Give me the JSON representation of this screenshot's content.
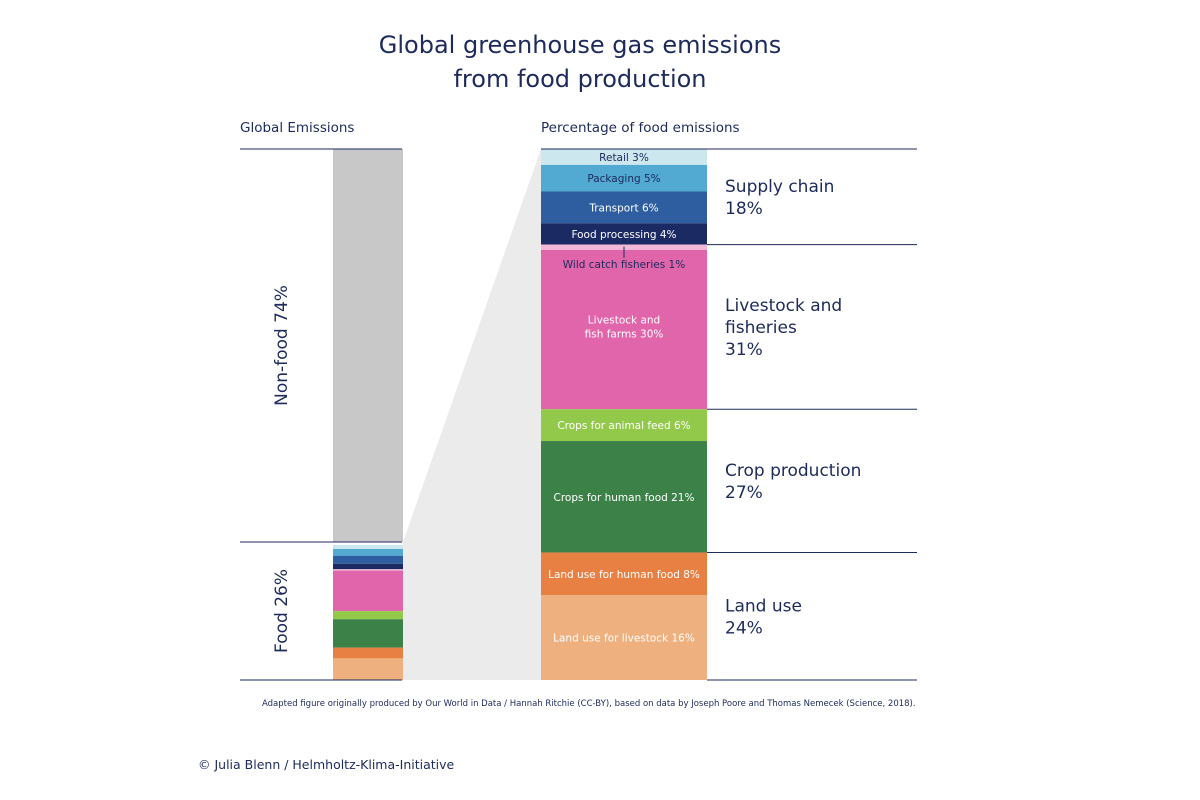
{
  "title_line1": "Global greenhouse gas emissions",
  "title_line2": "from food production",
  "left_header": "Global Emissions",
  "right_header": "Percentage of food emissions",
  "footnote": "Adapted figure originally produced by Our World in Data / Hannah Ritchie (CC-BY), based on data by Joseph Poore and Thomas Nemecek (Science, 2018).",
  "credit": "©  Julia Blenn / Helmholtz-Klima-Initiative",
  "chart_data": {
    "type": "bar",
    "left_bar": {
      "segments": [
        {
          "label": "Non-food 74%",
          "value": 74,
          "color": "#c8c8c8"
        },
        {
          "label": "Food 26%",
          "value": 26,
          "color": "#eeb07e"
        }
      ]
    },
    "right_bar": {
      "segments": [
        {
          "label": "Retail 3%",
          "value": 3,
          "color": "#cde7ee",
          "text_color": "#1c2a5c"
        },
        {
          "label": "Packaging 5%",
          "value": 5,
          "color": "#52a9d2",
          "text_color": "#1c2a5c"
        },
        {
          "label": "Transport 6%",
          "value": 6,
          "color": "#2e5ea0",
          "text_color": "#ffffff"
        },
        {
          "label": "Food processing 4%",
          "value": 4,
          "color": "#1b2a63",
          "text_color": "#ffffff"
        },
        {
          "label": "Wild catch fisheries 1%",
          "value": 1,
          "color": "#f2b8d6",
          "text_color": "#1c2a5c"
        },
        {
          "label": "Livestock and fish farms 30%",
          "value": 30,
          "color": "#e065aa",
          "text_color": "#ffffff"
        },
        {
          "label": "Crops for animal feed 6%",
          "value": 6,
          "color": "#93c94b",
          "text_color": "#ffffff"
        },
        {
          "label": "Crops for human food 21%",
          "value": 21,
          "color": "#3b8148",
          "text_color": "#ffffff"
        },
        {
          "label": "Land use for human food 8%",
          "value": 8,
          "color": "#e98043",
          "text_color": "#ffffff"
        },
        {
          "label": "Land use for livestock 16%",
          "value": 16,
          "color": "#eeb07e",
          "text_color": "#ffffff"
        }
      ]
    },
    "groups": [
      {
        "name": "Supply chain",
        "value": "18%",
        "segments": 4
      },
      {
        "name": "Livestock and fisheries",
        "value": "31%",
        "segments": 2
      },
      {
        "name": "Crop production",
        "value": "27%",
        "segments": 2
      },
      {
        "name": "Land use",
        "value": "24%",
        "segments": 2
      }
    ]
  }
}
